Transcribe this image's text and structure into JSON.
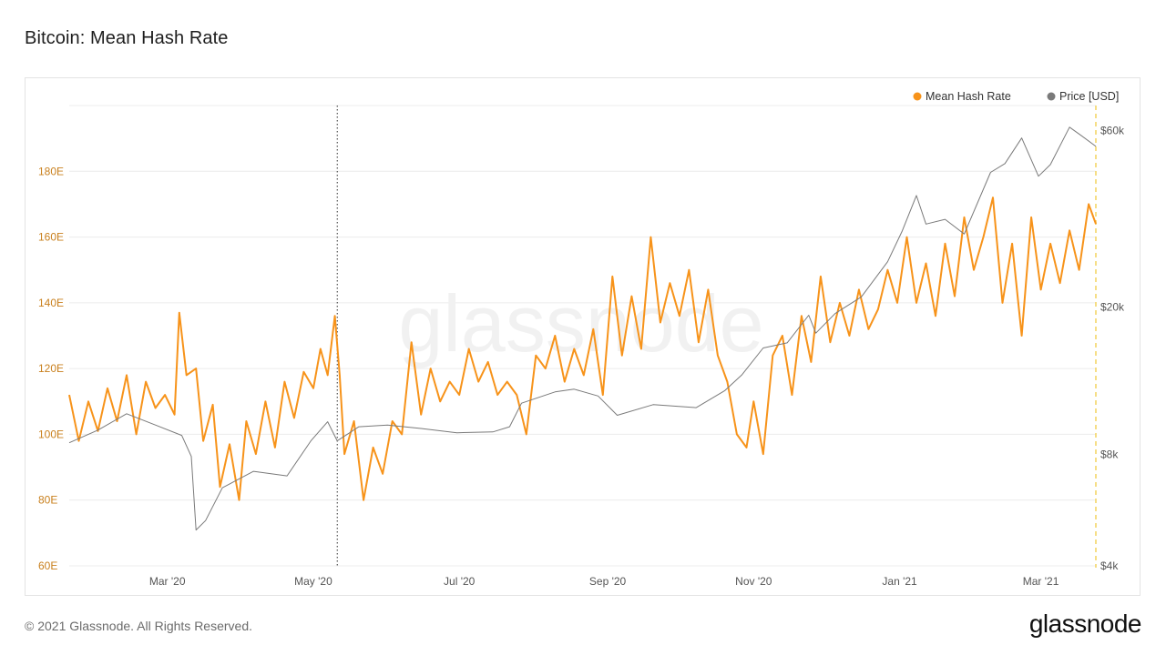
{
  "page": {
    "title": "Bitcoin: Mean Hash Rate",
    "footer_copyright": "© 2021 Glassnode. All Rights Reserved.",
    "footer_logo": "glassnode",
    "watermark": "glassnode"
  },
  "colors": {
    "hash_rate": "#f7931a",
    "price": "#7a7a7a",
    "grid": "#ececec",
    "left_axis_text": "#c9801e",
    "right_axis_text": "#555555",
    "x_axis_text": "#555555"
  },
  "chart_data": {
    "type": "line",
    "title": "Bitcoin: Mean Hash Rate",
    "legend": {
      "placement": "top-right",
      "items": [
        {
          "label": "Mean Hash Rate",
          "color": "#f7931a"
        },
        {
          "label": "Price [USD]",
          "color": "#7a7a7a"
        }
      ]
    },
    "x_range": [
      "2020-01-20",
      "2021-03-24"
    ],
    "x_ticks": [
      {
        "date": "2020-03-01",
        "label": "Mar '20"
      },
      {
        "date": "2020-05-01",
        "label": "May '20"
      },
      {
        "date": "2020-07-01",
        "label": "Jul '20"
      },
      {
        "date": "2020-09-01",
        "label": "Sep '20"
      },
      {
        "date": "2020-11-01",
        "label": "Nov '20"
      },
      {
        "date": "2021-01-01",
        "label": "Jan '21"
      },
      {
        "date": "2021-03-01",
        "label": "Mar '21"
      }
    ],
    "left_axis": {
      "scale": "linear",
      "ylim": [
        60,
        200
      ],
      "ticks": [
        {
          "value": 60,
          "label": "60E"
        },
        {
          "value": 80,
          "label": "80E"
        },
        {
          "value": 100,
          "label": "100E"
        },
        {
          "value": 120,
          "label": "120E"
        },
        {
          "value": 140,
          "label": "140E"
        },
        {
          "value": 160,
          "label": "160E"
        },
        {
          "value": 180,
          "label": "180E"
        }
      ]
    },
    "right_axis": {
      "scale": "log",
      "ylim": [
        4000,
        70000
      ],
      "ticks": [
        {
          "value": 4000,
          "label": "$4k"
        },
        {
          "value": 8000,
          "label": "$8k"
        },
        {
          "value": 20000,
          "label": "$20k"
        },
        {
          "value": 60000,
          "label": "$60k"
        }
      ]
    },
    "grid": true,
    "markers": [
      {
        "date": "2020-05-11",
        "style": "dotted",
        "color": "#333333"
      },
      {
        "date": "2021-03-24",
        "style": "dashed",
        "color": "#f4d35e"
      }
    ],
    "series": [
      {
        "name": "Mean Hash Rate",
        "axis": "left",
        "color": "#f7931a",
        "points": [
          [
            "2020-01-20",
            112
          ],
          [
            "2020-01-24",
            98
          ],
          [
            "2020-01-28",
            110
          ],
          [
            "2020-02-01",
            101
          ],
          [
            "2020-02-05",
            114
          ],
          [
            "2020-02-09",
            104
          ],
          [
            "2020-02-13",
            118
          ],
          [
            "2020-02-17",
            100
          ],
          [
            "2020-02-21",
            116
          ],
          [
            "2020-02-25",
            108
          ],
          [
            "2020-02-29",
            112
          ],
          [
            "2020-03-04",
            106
          ],
          [
            "2020-03-06",
            137
          ],
          [
            "2020-03-09",
            118
          ],
          [
            "2020-03-13",
            120
          ],
          [
            "2020-03-16",
            98
          ],
          [
            "2020-03-20",
            109
          ],
          [
            "2020-03-23",
            84
          ],
          [
            "2020-03-27",
            97
          ],
          [
            "2020-03-31",
            80
          ],
          [
            "2020-04-03",
            104
          ],
          [
            "2020-04-07",
            94
          ],
          [
            "2020-04-11",
            110
          ],
          [
            "2020-04-15",
            96
          ],
          [
            "2020-04-19",
            116
          ],
          [
            "2020-04-23",
            105
          ],
          [
            "2020-04-27",
            119
          ],
          [
            "2020-05-01",
            114
          ],
          [
            "2020-05-04",
            126
          ],
          [
            "2020-05-07",
            118
          ],
          [
            "2020-05-10",
            136
          ],
          [
            "2020-05-12",
            118
          ],
          [
            "2020-05-14",
            94
          ],
          [
            "2020-05-18",
            104
          ],
          [
            "2020-05-22",
            80
          ],
          [
            "2020-05-26",
            96
          ],
          [
            "2020-05-30",
            88
          ],
          [
            "2020-06-03",
            104
          ],
          [
            "2020-06-07",
            100
          ],
          [
            "2020-06-11",
            128
          ],
          [
            "2020-06-15",
            106
          ],
          [
            "2020-06-19",
            120
          ],
          [
            "2020-06-23",
            110
          ],
          [
            "2020-06-27",
            116
          ],
          [
            "2020-07-01",
            112
          ],
          [
            "2020-07-05",
            126
          ],
          [
            "2020-07-09",
            116
          ],
          [
            "2020-07-13",
            122
          ],
          [
            "2020-07-17",
            112
          ],
          [
            "2020-07-21",
            116
          ],
          [
            "2020-07-25",
            112
          ],
          [
            "2020-07-29",
            100
          ],
          [
            "2020-08-02",
            124
          ],
          [
            "2020-08-06",
            120
          ],
          [
            "2020-08-10",
            130
          ],
          [
            "2020-08-14",
            116
          ],
          [
            "2020-08-18",
            126
          ],
          [
            "2020-08-22",
            118
          ],
          [
            "2020-08-26",
            132
          ],
          [
            "2020-08-30",
            112
          ],
          [
            "2020-09-03",
            148
          ],
          [
            "2020-09-07",
            124
          ],
          [
            "2020-09-11",
            142
          ],
          [
            "2020-09-15",
            126
          ],
          [
            "2020-09-19",
            160
          ],
          [
            "2020-09-23",
            134
          ],
          [
            "2020-09-27",
            146
          ],
          [
            "2020-10-01",
            136
          ],
          [
            "2020-10-05",
            150
          ],
          [
            "2020-10-09",
            128
          ],
          [
            "2020-10-13",
            144
          ],
          [
            "2020-10-17",
            124
          ],
          [
            "2020-10-21",
            116
          ],
          [
            "2020-10-25",
            100
          ],
          [
            "2020-10-29",
            96
          ],
          [
            "2020-11-01",
            110
          ],
          [
            "2020-11-05",
            94
          ],
          [
            "2020-11-09",
            124
          ],
          [
            "2020-11-13",
            130
          ],
          [
            "2020-11-17",
            112
          ],
          [
            "2020-11-21",
            136
          ],
          [
            "2020-11-25",
            122
          ],
          [
            "2020-11-29",
            148
          ],
          [
            "2020-12-03",
            128
          ],
          [
            "2020-12-07",
            140
          ],
          [
            "2020-12-11",
            130
          ],
          [
            "2020-12-15",
            144
          ],
          [
            "2020-12-19",
            132
          ],
          [
            "2020-12-23",
            138
          ],
          [
            "2020-12-27",
            150
          ],
          [
            "2020-12-31",
            140
          ],
          [
            "2021-01-04",
            160
          ],
          [
            "2021-01-08",
            140
          ],
          [
            "2021-01-12",
            152
          ],
          [
            "2021-01-16",
            136
          ],
          [
            "2021-01-20",
            158
          ],
          [
            "2021-01-24",
            142
          ],
          [
            "2021-01-28",
            166
          ],
          [
            "2021-02-01",
            150
          ],
          [
            "2021-02-05",
            160
          ],
          [
            "2021-02-09",
            172
          ],
          [
            "2021-02-13",
            140
          ],
          [
            "2021-02-17",
            158
          ],
          [
            "2021-02-21",
            130
          ],
          [
            "2021-02-25",
            166
          ],
          [
            "2021-03-01",
            144
          ],
          [
            "2021-03-05",
            158
          ],
          [
            "2021-03-09",
            146
          ],
          [
            "2021-03-13",
            162
          ],
          [
            "2021-03-17",
            150
          ],
          [
            "2021-03-21",
            170
          ],
          [
            "2021-03-24",
            164
          ]
        ]
      },
      {
        "name": "Price [USD]",
        "axis": "right",
        "color": "#7a7a7a",
        "points": [
          [
            "2020-01-20",
            8600
          ],
          [
            "2020-02-01",
            9300
          ],
          [
            "2020-02-13",
            10300
          ],
          [
            "2020-02-25",
            9600
          ],
          [
            "2020-03-07",
            9000
          ],
          [
            "2020-03-11",
            7900
          ],
          [
            "2020-03-13",
            5000
          ],
          [
            "2020-03-17",
            5300
          ],
          [
            "2020-03-24",
            6500
          ],
          [
            "2020-04-06",
            7200
          ],
          [
            "2020-04-20",
            7000
          ],
          [
            "2020-04-30",
            8700
          ],
          [
            "2020-05-07",
            9800
          ],
          [
            "2020-05-11",
            8700
          ],
          [
            "2020-05-20",
            9500
          ],
          [
            "2020-06-01",
            9600
          ],
          [
            "2020-06-15",
            9400
          ],
          [
            "2020-06-30",
            9150
          ],
          [
            "2020-07-15",
            9200
          ],
          [
            "2020-07-22",
            9500
          ],
          [
            "2020-07-27",
            11000
          ],
          [
            "2020-08-10",
            11800
          ],
          [
            "2020-08-18",
            12000
          ],
          [
            "2020-08-28",
            11500
          ],
          [
            "2020-09-05",
            10200
          ],
          [
            "2020-09-20",
            10900
          ],
          [
            "2020-10-08",
            10700
          ],
          [
            "2020-10-20",
            11900
          ],
          [
            "2020-10-27",
            13100
          ],
          [
            "2020-11-05",
            15500
          ],
          [
            "2020-11-15",
            16000
          ],
          [
            "2020-11-24",
            19000
          ],
          [
            "2020-11-27",
            17000
          ],
          [
            "2020-12-05",
            19200
          ],
          [
            "2020-12-16",
            21300
          ],
          [
            "2020-12-27",
            26500
          ],
          [
            "2021-01-02",
            32000
          ],
          [
            "2021-01-08",
            40000
          ],
          [
            "2021-01-12",
            33500
          ],
          [
            "2021-01-20",
            34500
          ],
          [
            "2021-01-28",
            31500
          ],
          [
            "2021-02-08",
            46200
          ],
          [
            "2021-02-14",
            48800
          ],
          [
            "2021-02-21",
            57200
          ],
          [
            "2021-02-28",
            45100
          ],
          [
            "2021-03-05",
            48500
          ],
          [
            "2021-03-13",
            61200
          ],
          [
            "2021-03-18",
            58000
          ],
          [
            "2021-03-24",
            54300
          ]
        ]
      }
    ]
  }
}
